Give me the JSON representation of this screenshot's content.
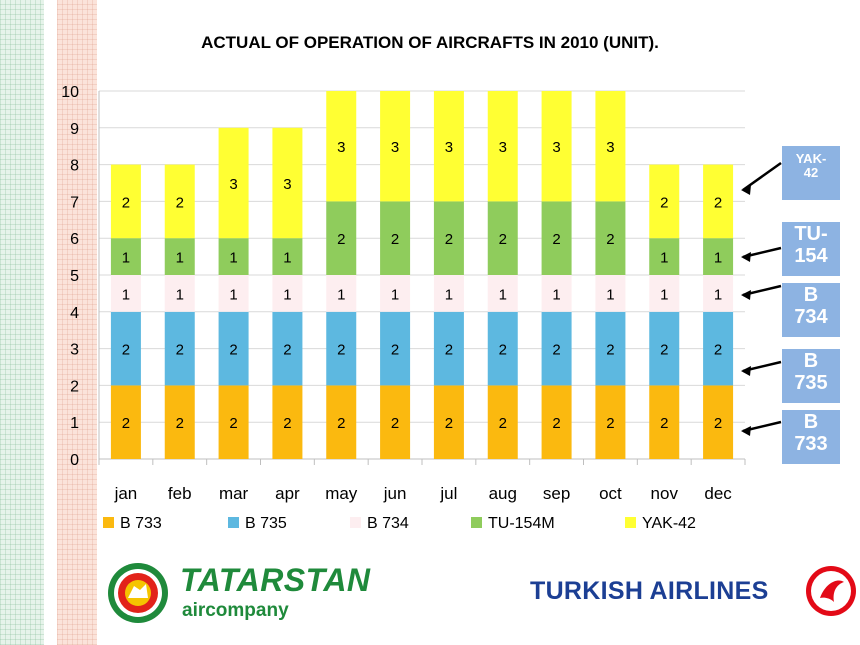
{
  "title": "ACTUAL OF OPERATION OF AIRCRAFTS IN 2010 (UNIT).",
  "colors": {
    "b733": "#fbb90f",
    "b735": "#5db8e0",
    "b734": "#fdeef0",
    "tu154m": "#8fcc5c",
    "yak42": "#ffff33",
    "callout": "#8db3e2",
    "tatarstan_green": "#1f8a3b",
    "turkish_blue": "#1c3f94",
    "turkish_red": "#e30a17"
  },
  "chart_data": {
    "type": "bar",
    "stacked": true,
    "title": "ACTUAL OF OPERATION OF AIRCRAFTS IN 2010 (UNIT).",
    "categories": [
      "jan",
      "feb",
      "mar",
      "apr",
      "may",
      "jun",
      "jul",
      "aug",
      "sep",
      "oct",
      "nov",
      "dec"
    ],
    "ylim": [
      0,
      10
    ],
    "yticks": [
      0,
      1,
      2,
      3,
      4,
      5,
      6,
      7,
      8,
      9,
      10
    ],
    "grid": true,
    "legend_position": "bottom",
    "series": [
      {
        "name": "B 733",
        "values": [
          2,
          2,
          2,
          2,
          2,
          2,
          2,
          2,
          2,
          2,
          2,
          2
        ]
      },
      {
        "name": "B 735",
        "values": [
          2,
          2,
          2,
          2,
          2,
          2,
          2,
          2,
          2,
          2,
          2,
          2
        ]
      },
      {
        "name": "B 734",
        "values": [
          1,
          1,
          1,
          1,
          1,
          1,
          1,
          1,
          1,
          1,
          1,
          1
        ]
      },
      {
        "name": "TU-154M",
        "values": [
          1,
          1,
          1,
          1,
          2,
          2,
          2,
          2,
          2,
          2,
          1,
          1
        ]
      },
      {
        "name": "YAK-42",
        "values": [
          2,
          2,
          3,
          3,
          3,
          3,
          3,
          3,
          3,
          3,
          2,
          2
        ]
      }
    ]
  },
  "callouts": [
    {
      "lines": [
        "YAK-",
        "42"
      ]
    },
    {
      "lines": [
        "TU-",
        "154"
      ]
    },
    {
      "lines": [
        "B",
        "734"
      ]
    },
    {
      "lines": [
        "B",
        "735"
      ]
    },
    {
      "lines": [
        "B",
        "733"
      ]
    }
  ],
  "logos": {
    "tatarstan_title": "TATARSTAN",
    "tatarstan_sub": "aircompany",
    "turkish": "TURKISH AIRLINES"
  }
}
